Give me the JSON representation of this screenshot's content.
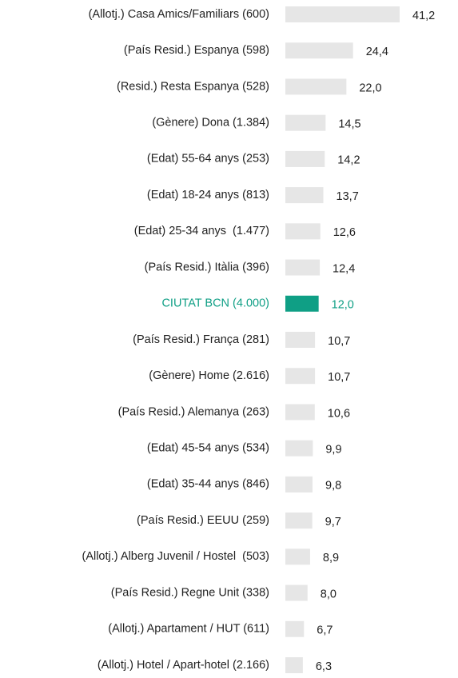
{
  "chart_data": {
    "type": "hbar",
    "categories": [
      "(Allotj.) Casa Amics/Familiars (600)",
      "(País Resid.) Espanya (598)",
      "(Resid.) Resta Espanya (528)",
      "(Gènere) Dona (1.384)",
      "(Edat) 55-64 anys (253)",
      "(Edat) 18-24 anys (813)",
      "(Edat) 25-34 anys  (1.477)",
      "(País Resid.) Itàlia (396)",
      "CIUTAT BCN (4.000)",
      "(País Resid.) França (281)",
      "(Gènere) Home (2.616)",
      "(País Resid.) Alemanya (263)",
      "(Edat) 45-54 anys (534)",
      "(Edat) 35-44 anys (846)",
      "(País Resid.) EEUU (259)",
      "(Allotj.) Alberg Juvenil / Hostel  (503)",
      "(País Resid.) Regne Unit (338)",
      "(Allotj.) Apartament / HUT (611)",
      "(Allotj.) Hotel / Apart-hotel (2.166)"
    ],
    "values": [
      41.2,
      24.4,
      22.0,
      14.5,
      14.2,
      13.7,
      12.6,
      12.4,
      12.0,
      10.7,
      10.7,
      10.6,
      9.9,
      9.8,
      9.7,
      8.9,
      8.0,
      6.7,
      6.3
    ],
    "value_labels": [
      "41,2",
      "24,4",
      "22,0",
      "14,5",
      "14,2",
      "13,7",
      "12,6",
      "12,4",
      "12,0",
      "10,7",
      "10,7",
      "10,6",
      "9,9",
      "9,8",
      "9,7",
      "8,9",
      "8,0",
      "6,7",
      "6,3"
    ],
    "colors": [
      "#e6e6e6",
      "#e6e6e6",
      "#e6e6e6",
      "#e6e6e6",
      "#e6e6e6",
      "#e6e6e6",
      "#e6e6e6",
      "#e6e6e6",
      "#0f9f85",
      "#e6e6e6",
      "#e6e6e6",
      "#e6e6e6",
      "#e6e6e6",
      "#e6e6e6",
      "#e6e6e6",
      "#e6e6e6",
      "#e6e6e6",
      "#e6e6e6",
      "#e6e6e6"
    ]
  }
}
